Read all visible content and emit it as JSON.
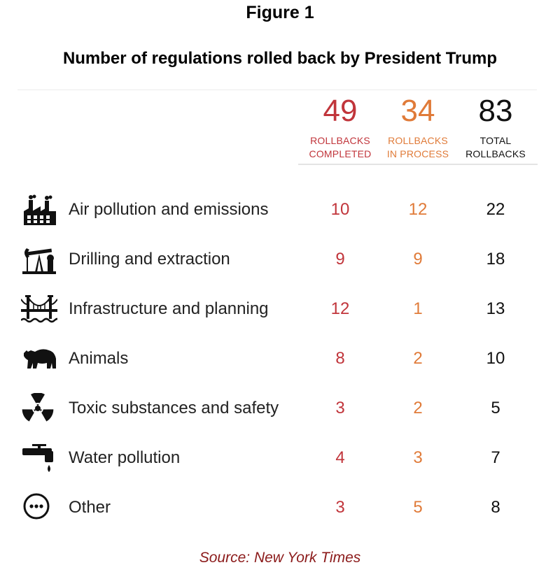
{
  "figure_label": "Figure 1",
  "chart_data": {
    "type": "table",
    "title": "Number of regulations rolled back by President Trump",
    "summary": [
      {
        "value": "49",
        "label_line1": "ROLLBACKS",
        "label_line2": "COMPLETED",
        "color": "#c1353b"
      },
      {
        "value": "34",
        "label_line1": "ROLLBACKS",
        "label_line2": "IN PROCESS",
        "color": "#e07b39"
      },
      {
        "value": "83",
        "label_line1": "TOTAL",
        "label_line2": "ROLLBACKS",
        "color": "#111111"
      }
    ],
    "rows": [
      {
        "category": "Air pollution and emissions",
        "icon": "factory-icon",
        "completed": 10,
        "in_process": 12,
        "total": 22
      },
      {
        "category": "Drilling and extraction",
        "icon": "oil-pump-icon",
        "completed": 9,
        "in_process": 9,
        "total": 18
      },
      {
        "category": "Infrastructure and planning",
        "icon": "bridge-icon",
        "completed": 12,
        "in_process": 1,
        "total": 13
      },
      {
        "category": "Animals",
        "icon": "bear-icon",
        "completed": 8,
        "in_process": 2,
        "total": 10
      },
      {
        "category": "Toxic substances and safety",
        "icon": "radiation-icon",
        "completed": 3,
        "in_process": 2,
        "total": 5
      },
      {
        "category": "Water pollution",
        "icon": "faucet-icon",
        "completed": 4,
        "in_process": 3,
        "total": 7
      },
      {
        "category": "Other",
        "icon": "ellipsis-circle-icon",
        "completed": 3,
        "in_process": 5,
        "total": 8
      }
    ]
  },
  "source": "Source: New York Times"
}
